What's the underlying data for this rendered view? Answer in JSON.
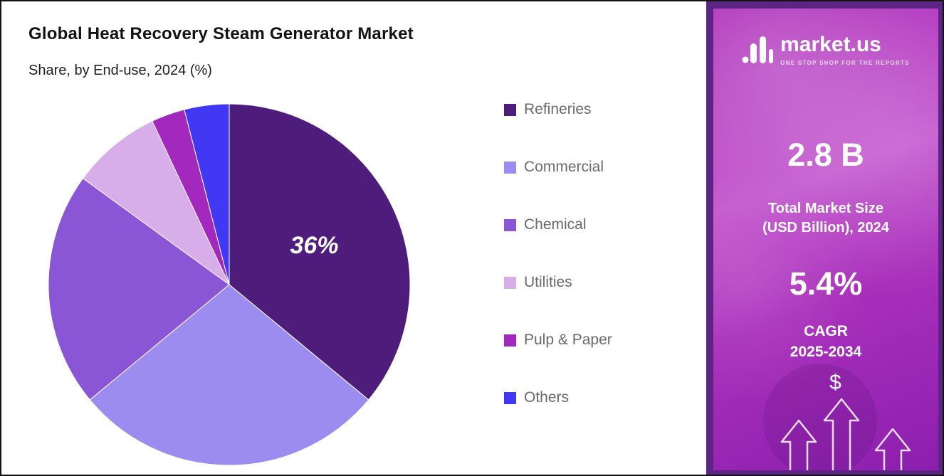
{
  "chart_data": {
    "type": "pie",
    "title": "Global Heat Recovery Steam Generator Market",
    "subtitle": "Share, by End-use, 2024 (%)",
    "unit": "%",
    "categories": [
      "Refineries",
      "Commercial",
      "Chemical",
      "Utilities",
      "Pulp & Paper",
      "Others"
    ],
    "values": [
      36,
      28,
      21,
      8,
      3,
      4
    ],
    "colors": [
      "#4e1d7c",
      "#9c8cf0",
      "#8a56d5",
      "#d8aeea",
      "#a328bd",
      "#4038f2"
    ],
    "start_angle_deg": 0,
    "direction": "clockwise",
    "data_labels": [
      {
        "slice": "Refineries",
        "text": "36%"
      }
    ],
    "legend_position": "right"
  },
  "sidebar": {
    "logo": {
      "text": "market.us",
      "tagline": "ONE STOP SHOP FOR THE REPORTS"
    },
    "stats": {
      "market_size_value": "2.8 B",
      "market_size_label_line1": "Total Market Size",
      "market_size_label_line2": "(USD Billion), 2024",
      "cagr_value": "5.4%",
      "cagr_title": "CAGR",
      "cagr_period": "2025-2034"
    },
    "dollar_symbol": "$",
    "accent_colors": {
      "frame": "#5c2483",
      "gradient_top": "#ad2eba",
      "gradient_bottom": "#8c1fae"
    }
  }
}
